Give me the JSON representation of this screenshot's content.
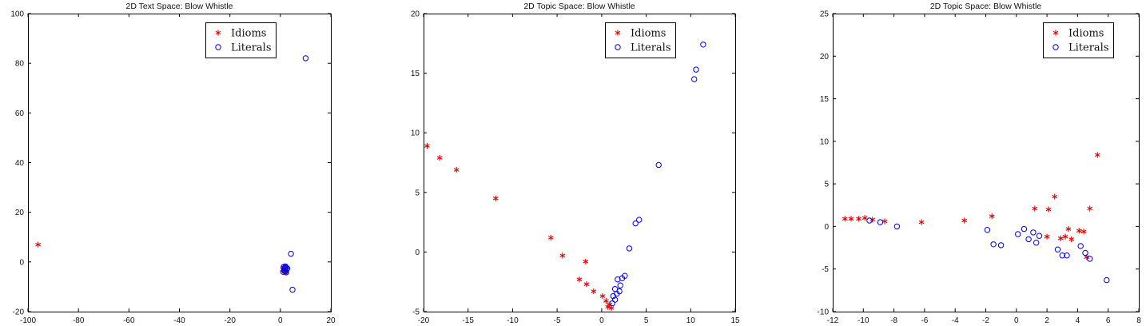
{
  "figure": {
    "background": "#ffffff",
    "axis_color": "#000000",
    "idiom_color": "#e50000",
    "literal_color": "#0000e5"
  },
  "chart_data": [
    {
      "type": "scatter",
      "title": "2D Text Space: Blow Whistle",
      "xlim": [
        -100,
        20
      ],
      "ylim": [
        -20,
        100
      ],
      "xticks": [
        -100,
        -80,
        -60,
        -40,
        -20,
        0,
        20
      ],
      "yticks": [
        -20,
        0,
        20,
        40,
        60,
        80,
        100
      ],
      "grid": false,
      "legend_position": "top-right-inset",
      "series": [
        {
          "name": "Idioms",
          "marker": "asterisk",
          "color": "#e50000",
          "points": [
            [
              -96,
              7
            ],
            [
              1.2,
              -2.2
            ],
            [
              1.6,
              -2.8
            ],
            [
              2.0,
              -3.2
            ],
            [
              1.4,
              -3.6
            ],
            [
              1.8,
              -2.4
            ],
            [
              2.2,
              -2.9
            ],
            [
              1.0,
              -3.0
            ],
            [
              1.5,
              -3.3
            ],
            [
              2.4,
              -3.8
            ],
            [
              1.9,
              -4.1
            ]
          ]
        },
        {
          "name": "Literals",
          "marker": "circle",
          "color": "#0000e5",
          "points": [
            [
              10,
              82
            ],
            [
              4.2,
              3.3
            ],
            [
              4.8,
              -11.2
            ],
            [
              1.3,
              -2.0
            ],
            [
              1.7,
              -2.5
            ],
            [
              2.1,
              -2.2
            ],
            [
              2.5,
              -3.0
            ],
            [
              1.5,
              -3.5
            ],
            [
              1.9,
              -3.8
            ],
            [
              2.3,
              -4.2
            ],
            [
              1.1,
              -4.0
            ],
            [
              2.7,
              -2.6
            ],
            [
              2.0,
              -1.8
            ]
          ]
        }
      ]
    },
    {
      "type": "scatter",
      "title": "2D Topic Space: Blow Whistle",
      "xlim": [
        -20,
        15
      ],
      "ylim": [
        -5,
        20
      ],
      "xticks": [
        -20,
        -15,
        -10,
        -5,
        0,
        5,
        10,
        15
      ],
      "yticks": [
        -5,
        0,
        5,
        10,
        15,
        20
      ],
      "grid": false,
      "legend_position": "top-right-inset",
      "series": [
        {
          "name": "Idioms",
          "marker": "asterisk",
          "color": "#e50000",
          "points": [
            [
              -19.6,
              8.9
            ],
            [
              -18.2,
              7.9
            ],
            [
              -16.3,
              6.9
            ],
            [
              -11.9,
              4.5
            ],
            [
              -5.7,
              1.2
            ],
            [
              -4.4,
              -0.3
            ],
            [
              -1.8,
              -0.8
            ],
            [
              -2.5,
              -2.3
            ],
            [
              -1.7,
              -2.7
            ],
            [
              -0.9,
              -3.3
            ],
            [
              0.1,
              -3.7
            ],
            [
              0.5,
              -4.1
            ],
            [
              0.9,
              -4.4
            ],
            [
              1.1,
              -4.7
            ],
            [
              0.7,
              -4.6
            ]
          ]
        },
        {
          "name": "Literals",
          "marker": "circle",
          "color": "#0000e5",
          "points": [
            [
              1.2,
              -4.3
            ],
            [
              1.5,
              -4.0
            ],
            [
              1.3,
              -3.7
            ],
            [
              1.7,
              -3.5
            ],
            [
              2.0,
              -3.3
            ],
            [
              1.5,
              -3.1
            ],
            [
              2.1,
              -2.8
            ],
            [
              1.8,
              -2.3
            ],
            [
              2.3,
              -2.2
            ],
            [
              2.6,
              -2.0
            ],
            [
              3.1,
              0.3
            ],
            [
              3.8,
              2.4
            ],
            [
              4.2,
              2.7
            ],
            [
              6.4,
              7.3
            ],
            [
              10.4,
              14.5
            ],
            [
              10.6,
              15.3
            ],
            [
              11.4,
              17.4
            ]
          ]
        }
      ]
    },
    {
      "type": "scatter",
      "title": "2D Topic Space: Blow Whistle",
      "xlim": [
        -12,
        8
      ],
      "ylim": [
        -10,
        25
      ],
      "xticks": [
        -12,
        -10,
        -8,
        -6,
        -4,
        -2,
        0,
        2,
        4,
        6,
        8
      ],
      "yticks": [
        -10,
        -5,
        0,
        5,
        10,
        15,
        20,
        25
      ],
      "grid": false,
      "legend_position": "top-right-inset",
      "series": [
        {
          "name": "Idioms",
          "marker": "asterisk",
          "color": "#e50000",
          "points": [
            [
              -11.2,
              0.9
            ],
            [
              -10.8,
              0.9
            ],
            [
              -10.3,
              0.9
            ],
            [
              -9.9,
              1.0
            ],
            [
              -9.4,
              0.8
            ],
            [
              -8.6,
              0.6
            ],
            [
              -6.2,
              0.5
            ],
            [
              -3.4,
              0.7
            ],
            [
              -1.6,
              1.2
            ],
            [
              1.2,
              2.1
            ],
            [
              2.1,
              2.0
            ],
            [
              2.5,
              3.5
            ],
            [
              2.0,
              -1.2
            ],
            [
              2.9,
              -1.4
            ],
            [
              3.2,
              -1.2
            ],
            [
              3.6,
              -1.5
            ],
            [
              3.4,
              -0.3
            ],
            [
              4.1,
              -0.5
            ],
            [
              4.4,
              -0.6
            ],
            [
              4.8,
              2.1
            ],
            [
              5.3,
              8.4
            ],
            [
              4.6,
              -3.6
            ]
          ]
        },
        {
          "name": "Literals",
          "marker": "circle",
          "color": "#0000e5",
          "points": [
            [
              -9.6,
              0.7
            ],
            [
              -8.9,
              0.5
            ],
            [
              -7.8,
              0.0
            ],
            [
              -1.9,
              -0.4
            ],
            [
              -1.5,
              -2.1
            ],
            [
              -1.0,
              -2.2
            ],
            [
              0.1,
              -0.9
            ],
            [
              0.5,
              -0.3
            ],
            [
              0.8,
              -1.5
            ],
            [
              1.1,
              -0.7
            ],
            [
              1.5,
              -1.1
            ],
            [
              1.3,
              -1.9
            ],
            [
              2.7,
              -2.7
            ],
            [
              3.0,
              -3.4
            ],
            [
              3.3,
              -3.4
            ],
            [
              4.2,
              -2.3
            ],
            [
              4.5,
              -3.1
            ],
            [
              4.8,
              -3.8
            ],
            [
              5.9,
              -6.3
            ]
          ]
        }
      ]
    }
  ]
}
